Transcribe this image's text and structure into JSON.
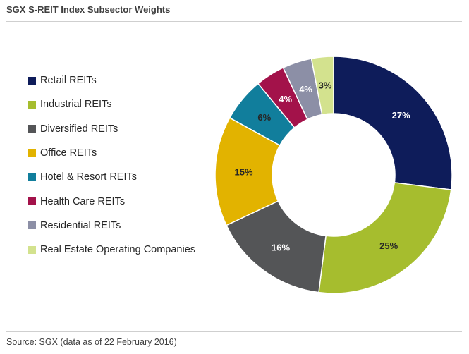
{
  "chart_data": {
    "type": "pie",
    "subtype": "donut",
    "title": "SGX S-REIT Index Subsector Weights",
    "source": "Source: SGX (data as of 22 February 2016)",
    "legend_position": "left",
    "categories": [
      "Retail REITs",
      "Industrial REITs",
      "Diversified REITs",
      "Office REITs",
      "Hotel & Resort REITs",
      "Health Care REITs",
      "Residential REITs",
      "Real Estate Operating Companies"
    ],
    "values": [
      27,
      25,
      16,
      15,
      6,
      4,
      4,
      3
    ],
    "labels": [
      "27%",
      "25%",
      "16%",
      "15%",
      "6%",
      "4%",
      "4%",
      "3%"
    ],
    "colors": [
      "#0e1c5a",
      "#a6bd2e",
      "#545557",
      "#e2b300",
      "#117e9c",
      "#a3124a",
      "#8c8fa6",
      "#d3e28e"
    ],
    "label_colors": [
      "#ffffff",
      "#262626",
      "#ffffff",
      "#262626",
      "#262626",
      "#ffffff",
      "#ffffff",
      "#262626"
    ],
    "legend_icon": "square-swatch"
  }
}
